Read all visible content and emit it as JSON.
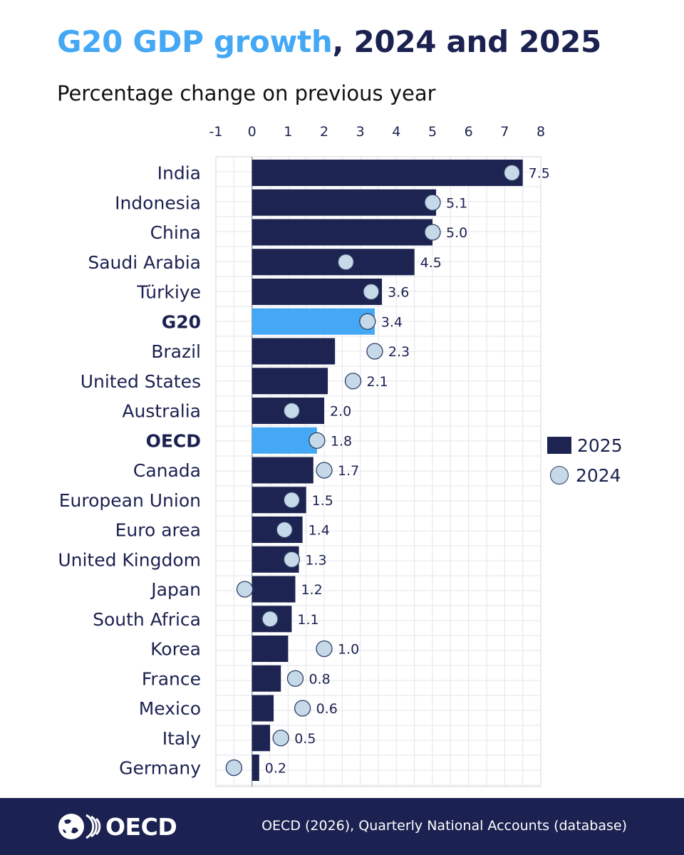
{
  "title_highlight": "G20 GDP growth",
  "title_rest": ", 2024 and 2025",
  "subtitle": "Percentage change on previous year",
  "legend": {
    "series_2025": "2025",
    "series_2024": "2024"
  },
  "footer": {
    "logo_text": "OECD",
    "source": "OECD (2026), Quarterly National Accounts (database)"
  },
  "colors": {
    "bar": "#1e2452",
    "highlight_bar": "#44a8f5",
    "dot_fill": "#c6d9e8",
    "dot_stroke": "#2c3e66",
    "title_highlight": "#44a8f5",
    "footer_bg": "#1b2150"
  },
  "chart_data": {
    "type": "bar",
    "orientation": "horizontal",
    "xlim": [
      -1,
      8
    ],
    "xticks": [
      "-1",
      "0",
      "1",
      "2",
      "3",
      "4",
      "5",
      "6",
      "7",
      "8"
    ],
    "grid": true,
    "legend_position": "right",
    "categories": [
      "India",
      "Indonesia",
      "China",
      "Saudi Arabia",
      "Türkiye",
      "G20",
      "Brazil",
      "United States",
      "Australia",
      "OECD",
      "Canada",
      "European Union",
      "Euro area",
      "United Kingdom",
      "Japan",
      "South Africa",
      "Korea",
      "France",
      "Mexico",
      "Italy",
      "Germany"
    ],
    "bold_categories": [
      "G20",
      "OECD"
    ],
    "series": [
      {
        "name": "2025",
        "mark": "bar",
        "values": [
          7.5,
          5.1,
          5.0,
          4.5,
          3.6,
          3.4,
          2.3,
          2.1,
          2.0,
          1.8,
          1.7,
          1.5,
          1.4,
          1.3,
          1.2,
          1.1,
          1.0,
          0.8,
          0.6,
          0.5,
          0.2
        ],
        "labels": [
          "7.5",
          "5.1",
          "5.0",
          "4.5",
          "3.6",
          "3.4",
          "2.3",
          "2.1",
          "2.0",
          "1.8",
          "1.7",
          "1.5",
          "1.4",
          "1.3",
          "1.2",
          "1.1",
          "1.0",
          "0.8",
          "0.6",
          "0.5",
          "0.2"
        ]
      },
      {
        "name": "2024",
        "mark": "dot",
        "values": [
          7.2,
          5.0,
          5.0,
          2.6,
          3.3,
          3.2,
          3.4,
          2.8,
          1.1,
          1.8,
          2.0,
          1.1,
          0.9,
          1.1,
          -0.2,
          0.5,
          2.0,
          1.2,
          1.4,
          0.8,
          -0.5
        ]
      }
    ]
  }
}
